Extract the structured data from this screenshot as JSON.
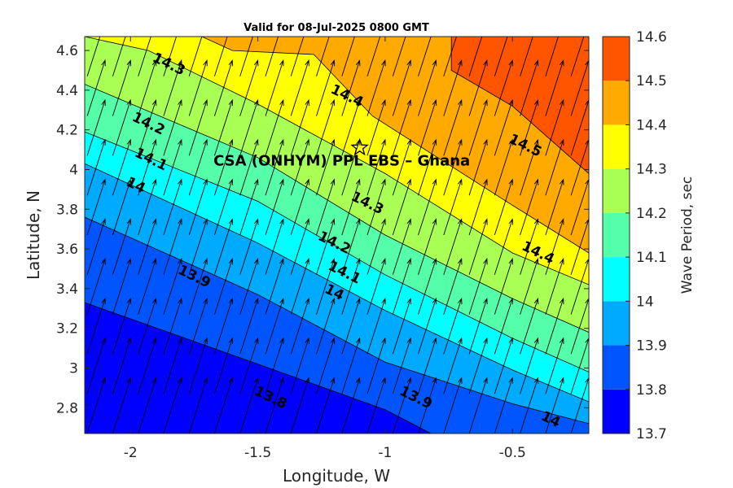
{
  "chart_data": {
    "type": "filled-contour",
    "title": "Valid for 08-Jul-2025 0800 GMT",
    "xlabel": "Longitude, W",
    "ylabel": "Latitude, N",
    "xlim": [
      -2.18,
      -0.2
    ],
    "ylim": [
      2.67,
      4.67
    ],
    "x_ticks": [
      -2,
      -1.5,
      -1,
      -0.5
    ],
    "x_tick_labels": [
      "-2",
      "-1.5",
      "-1",
      "-0.5"
    ],
    "y_ticks": [
      2.8,
      3.0,
      3.2,
      3.4,
      3.6,
      3.8,
      4.0,
      4.2,
      4.4,
      4.6
    ],
    "y_tick_labels": [
      "2.8",
      "3",
      "3.2",
      "3.4",
      "3.6",
      "3.8",
      "4",
      "4.2",
      "4.4",
      "4.6"
    ],
    "colorbar": {
      "label": "Wave Period, sec",
      "levels": [
        13.7,
        13.8,
        13.9,
        14.0,
        14.1,
        14.2,
        14.3,
        14.4,
        14.5,
        14.6
      ],
      "tick_labels": [
        "13.7",
        "13.8",
        "13.9",
        "14",
        "14.1",
        "14.2",
        "14.3",
        "14.4",
        "14.5",
        "14.6"
      ],
      "colors": [
        "#0000ff",
        "#0055ff",
        "#00aaff",
        "#00ffff",
        "#55ffaa",
        "#aaff55",
        "#ffff00",
        "#ffaa00",
        "#ff5500"
      ]
    },
    "contour_boundaries": [
      {
        "level": 13.8,
        "points": [
          [
            -2.18,
            3.33
          ],
          [
            -1.5,
            3.02
          ],
          [
            -1.0,
            2.79
          ],
          [
            -0.82,
            2.67
          ]
        ]
      },
      {
        "level": 13.9,
        "points": [
          [
            -2.18,
            3.76
          ],
          [
            -1.5,
            3.37
          ],
          [
            -1.0,
            3.03
          ],
          [
            -0.5,
            2.82
          ],
          [
            -0.2,
            2.72
          ]
        ]
      },
      {
        "level": 14.0,
        "points": [
          [
            -2.18,
            4.03
          ],
          [
            -1.5,
            3.63
          ],
          [
            -1.0,
            3.29
          ],
          [
            -0.5,
            2.99
          ],
          [
            -0.2,
            2.83
          ]
        ]
      },
      {
        "level": 14.1,
        "points": [
          [
            -2.18,
            4.19
          ],
          [
            -1.5,
            3.84
          ],
          [
            -1.0,
            3.47
          ],
          [
            -0.5,
            3.15
          ],
          [
            -0.2,
            2.98
          ]
        ]
      },
      {
        "level": 14.2,
        "points": [
          [
            -2.18,
            4.43
          ],
          [
            -1.5,
            4.06
          ],
          [
            -1.0,
            3.67
          ],
          [
            -0.5,
            3.35
          ],
          [
            -0.2,
            3.18
          ]
        ]
      },
      {
        "level": 14.3,
        "points": [
          [
            -2.18,
            4.67
          ],
          [
            -1.93,
            4.6
          ],
          [
            -1.5,
            4.33
          ],
          [
            -1.0,
            3.98
          ],
          [
            -0.5,
            3.58
          ],
          [
            -0.2,
            3.42
          ]
        ]
      },
      {
        "level": 14.4,
        "points": [
          [
            -1.72,
            4.67
          ],
          [
            -1.6,
            4.6
          ],
          [
            -1.28,
            4.58
          ],
          [
            -1.05,
            4.27
          ],
          [
            -0.5,
            3.82
          ],
          [
            -0.2,
            3.58
          ]
        ]
      },
      {
        "level": 14.5,
        "points": [
          [
            -0.74,
            4.67
          ],
          [
            -0.74,
            4.5
          ],
          [
            -0.5,
            4.32
          ],
          [
            -0.2,
            3.98
          ]
        ]
      }
    ],
    "contour_labels": [
      {
        "text": "14.3",
        "x": -1.85,
        "y": 4.53
      },
      {
        "text": "14.2",
        "x": -1.93,
        "y": 4.23
      },
      {
        "text": "14.1",
        "x": -1.92,
        "y": 4.05
      },
      {
        "text": "14",
        "x": -1.98,
        "y": 3.92
      },
      {
        "text": "14.4",
        "x": -1.15,
        "y": 4.37
      },
      {
        "text": "14.5",
        "x": -0.45,
        "y": 4.12
      },
      {
        "text": "14.3",
        "x": -1.07,
        "y": 3.83
      },
      {
        "text": "14.2",
        "x": -1.2,
        "y": 3.63
      },
      {
        "text": "14.1",
        "x": -1.16,
        "y": 3.48
      },
      {
        "text": "14",
        "x": -1.2,
        "y": 3.38
      },
      {
        "text": "13.9",
        "x": -1.75,
        "y": 3.46
      },
      {
        "text": "14.4",
        "x": -0.4,
        "y": 3.58
      },
      {
        "text": "13.8",
        "x": -1.45,
        "y": 2.85
      },
      {
        "text": "13.9",
        "x": -0.88,
        "y": 2.85
      },
      {
        "text": "14",
        "x": -0.35,
        "y": 2.74
      }
    ],
    "vectors": {
      "dx": 0.07,
      "dy": 0.28,
      "direction": "toward NNE"
    },
    "annotation": {
      "text": "CSA (ONHYM) PPL EBS  – Ghana",
      "marker": "star",
      "x": -1.1,
      "y": 4.11
    }
  }
}
